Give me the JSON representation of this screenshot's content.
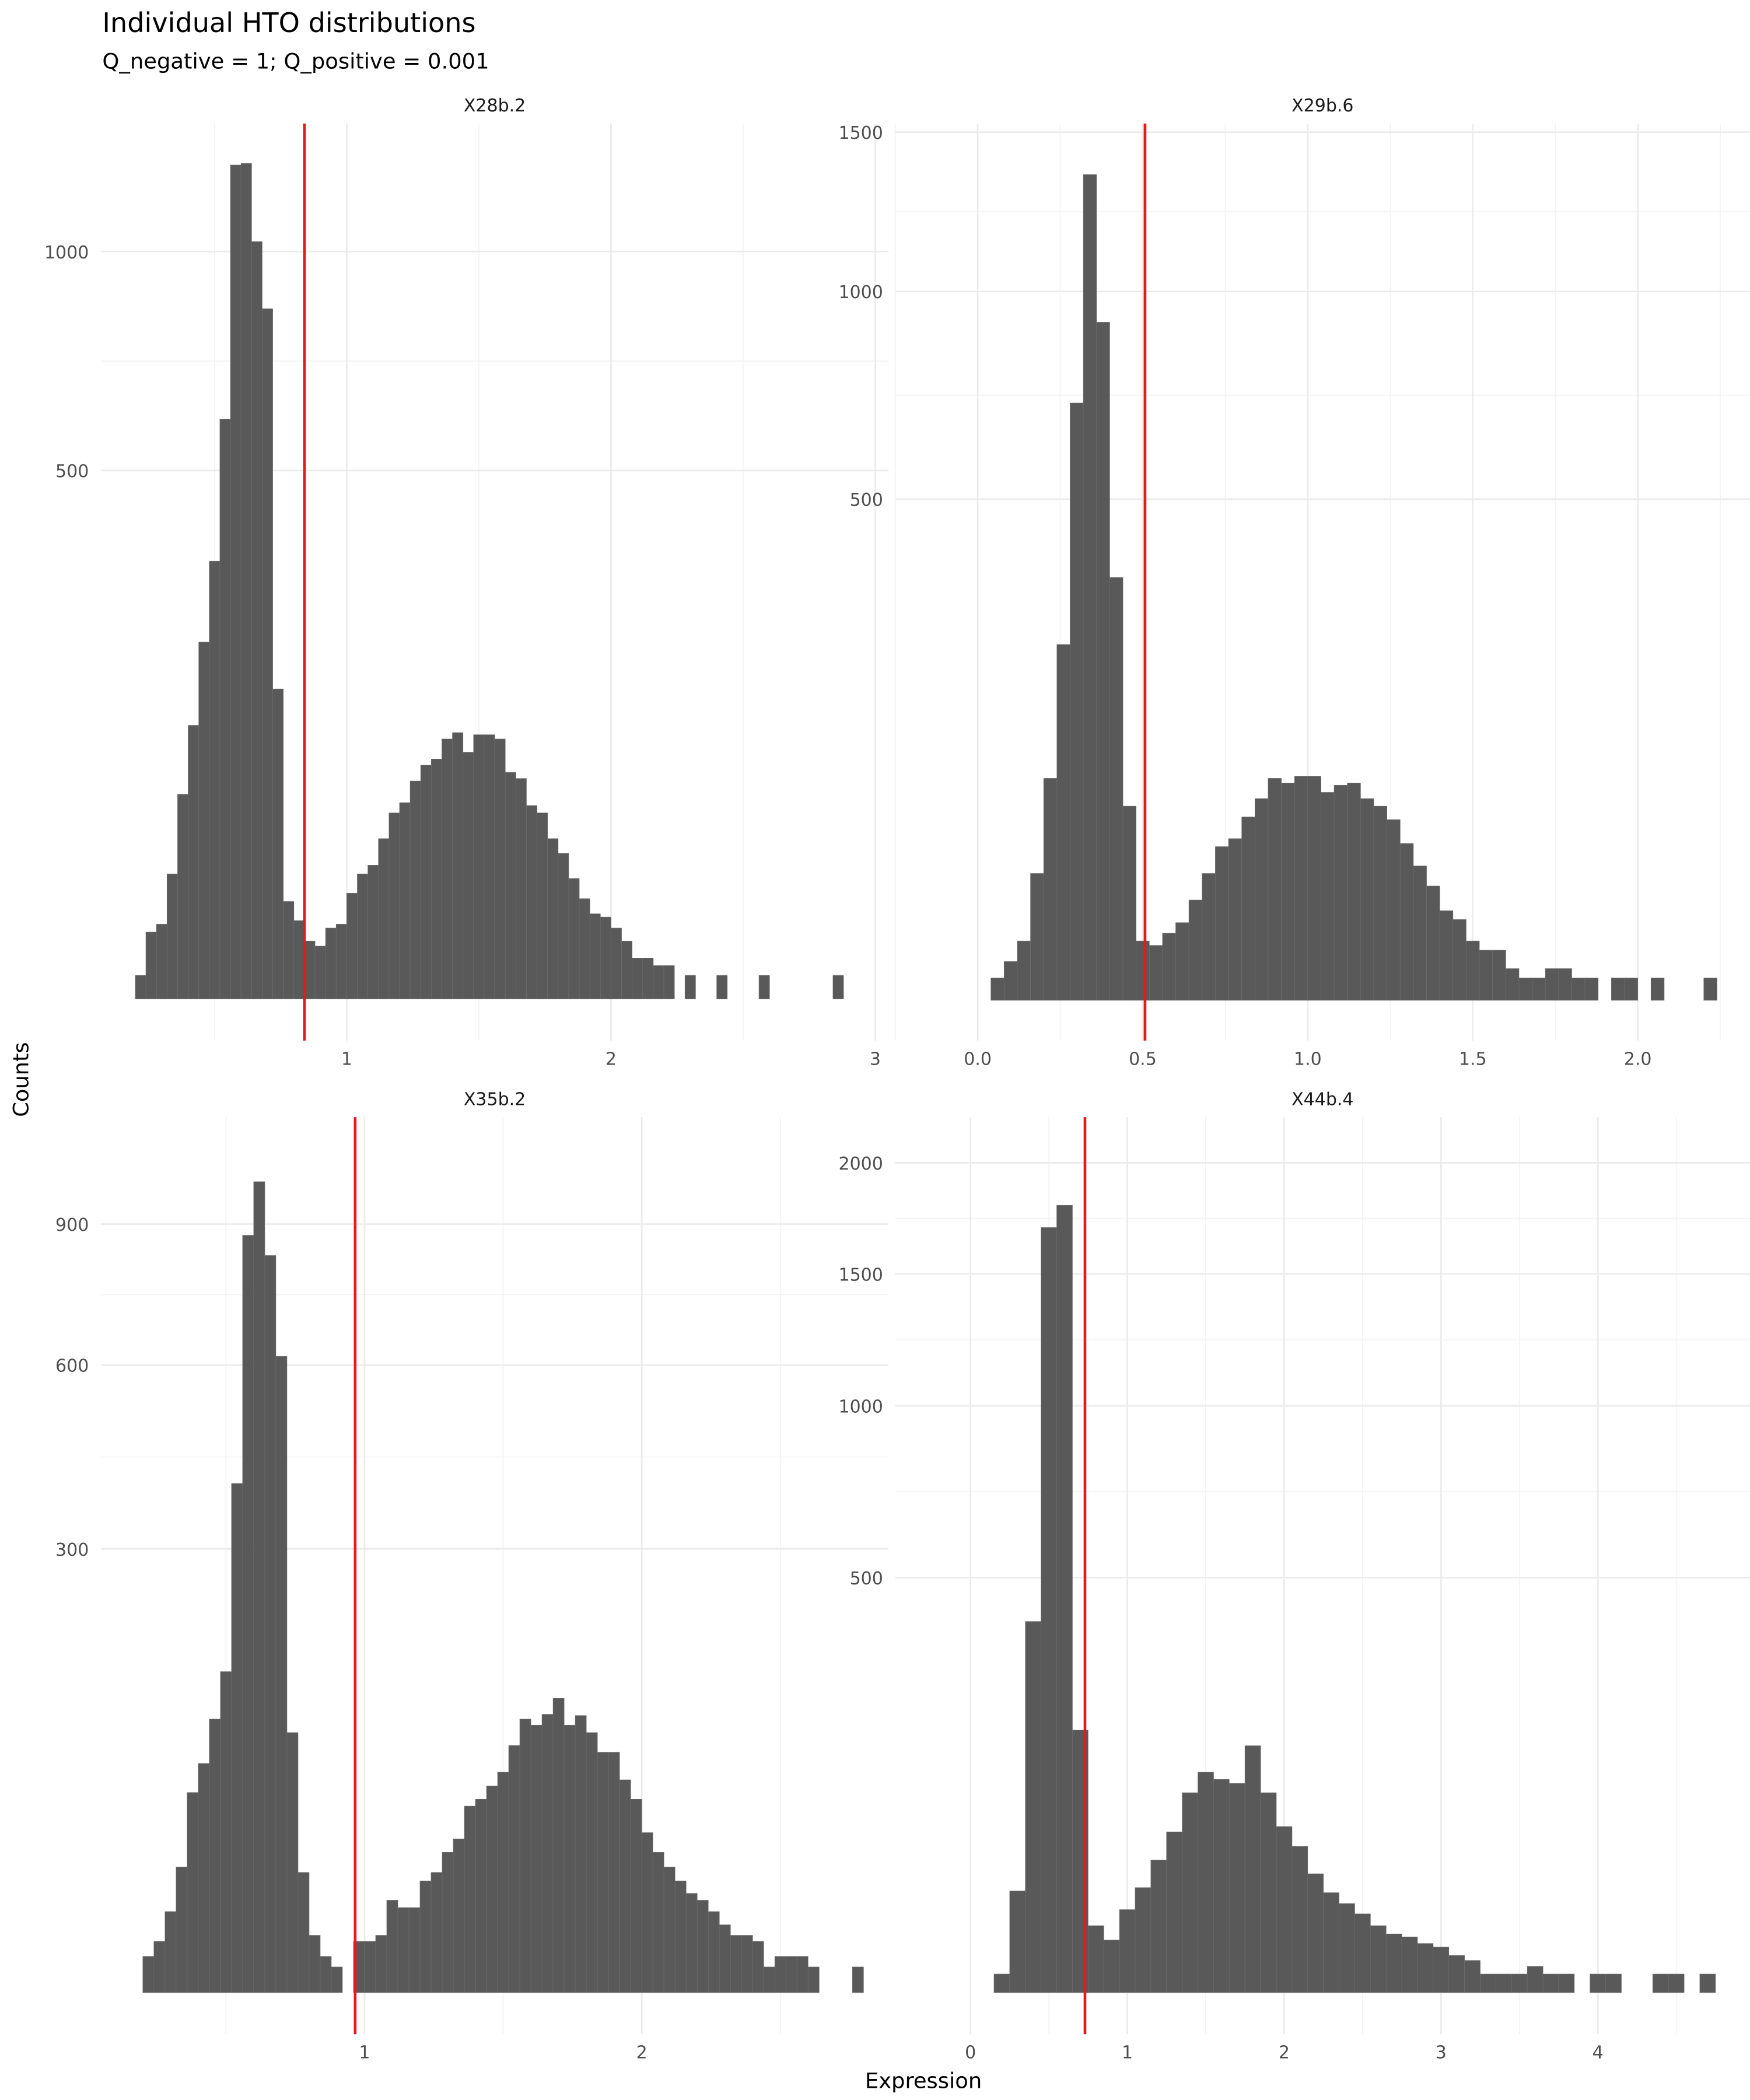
{
  "title": "Individual HTO distributions",
  "subtitle": "Q_negative = 1; Q_positive = 0.001",
  "x_label": "Expression",
  "y_label": "Counts",
  "chart_data": [
    {
      "type": "histogram",
      "title": "X28b.2",
      "color": "#595959",
      "y_scale": "sqrt",
      "grid": true,
      "vline": {
        "value": 0.84,
        "color": "#e41a1c"
      },
      "xlim": [
        0.07,
        3.05
      ],
      "xticks": [
        1,
        2,
        3
      ],
      "ylim": [
        0,
        1372
      ],
      "yticks": [
        500,
        1000
      ],
      "bins": [
        0.2,
        0.24,
        0.28,
        0.32,
        0.36,
        0.4,
        0.44,
        0.48,
        0.52,
        0.56,
        0.6,
        0.64,
        0.68,
        0.72,
        0.76,
        0.8,
        0.84,
        0.88,
        0.92,
        0.96,
        1,
        1.04,
        1.08,
        1.12,
        1.16,
        1.2,
        1.24,
        1.28,
        1.32,
        1.36,
        1.4,
        1.44,
        1.48,
        1.52,
        1.56,
        1.6,
        1.64,
        1.68,
        1.72,
        1.76,
        1.8,
        1.84,
        1.88,
        1.92,
        1.96,
        2,
        2.04,
        2.08,
        2.12,
        2.16,
        2.2,
        2.24,
        2.28,
        2.32,
        2.36,
        2.4,
        2.44,
        2.48,
        2.52,
        2.56,
        2.6,
        2.64,
        2.68,
        2.72,
        2.76,
        2.8,
        2.84,
        2.88,
        2.92
      ],
      "counts": [
        1,
        8,
        10,
        28,
        75,
        134,
        228,
        343,
        602,
        1245,
        1250,
        1027,
        853,
        172,
        17,
        11,
        6,
        5,
        9,
        10,
        20,
        28,
        32,
        46,
        62,
        69,
        85,
        98,
        103,
        121,
        127,
        109,
        125,
        125,
        121,
        92,
        87,
        67,
        62,
        46,
        38,
        26,
        18,
        13,
        12,
        9,
        6,
        3,
        3,
        2,
        2,
        0,
        1,
        0,
        0,
        1,
        0,
        0,
        0,
        1,
        0,
        0,
        0,
        0,
        0,
        0,
        1,
        0
      ]
    },
    {
      "type": "histogram",
      "title": "X29b.6",
      "color": "#595959",
      "y_scale": "sqrt",
      "grid": true,
      "vline": {
        "value": 0.507,
        "color": "#e41a1c"
      },
      "xlim": [
        -0.25,
        2.34
      ],
      "xticks": [
        {
          "value": 0,
          "label": "0.0"
        },
        0.5,
        {
          "value": 1,
          "label": "1.0"
        },
        1.5,
        {
          "value": 2,
          "label": "2.0"
        }
      ],
      "ylim": [
        0,
        1530
      ],
      "yticks": [
        500,
        1000,
        1500
      ],
      "bins": [
        0.04,
        0.08,
        0.12,
        0.16,
        0.2,
        0.24,
        0.28,
        0.32,
        0.36,
        0.4,
        0.44,
        0.48,
        0.52,
        0.56,
        0.6,
        0.64,
        0.68,
        0.72,
        0.76,
        0.8,
        0.84,
        0.88,
        0.92,
        0.96,
        1,
        1.04,
        1.08,
        1.12,
        1.16,
        1.2,
        1.24,
        1.28,
        1.32,
        1.36,
        1.4,
        1.44,
        1.48,
        1.52,
        1.56,
        1.6,
        1.64,
        1.68,
        1.72,
        1.76,
        1.8,
        1.84,
        1.88,
        1.92,
        1.96,
        2,
        2.04,
        2.08,
        2.12,
        2.16,
        2.2,
        2.24
      ],
      "counts": [
        1,
        3,
        7,
        32,
        98,
        252,
        710,
        1357,
        915,
        356,
        75,
        7,
        6,
        9,
        12,
        20,
        32,
        47,
        52,
        67,
        81,
        98,
        94,
        100,
        100,
        86,
        92,
        94,
        81,
        75,
        65,
        49,
        36,
        26,
        16,
        13,
        7,
        5,
        5,
        2,
        1,
        1,
        2,
        2,
        1,
        1,
        0,
        1,
        1,
        0,
        1,
        0,
        0,
        0,
        1
      ]
    },
    {
      "type": "histogram",
      "title": "X35b.2",
      "color": "#595959",
      "y_scale": "sqrt",
      "grid": true,
      "vline": {
        "value": 0.966,
        "color": "#e41a1c"
      },
      "xlim": [
        0.049,
        2.89
      ],
      "xticks": [
        1,
        2
      ],
      "ylim": [
        0,
        1168
      ],
      "yticks": [
        300,
        600,
        900
      ],
      "bins": [
        0.2,
        0.24,
        0.28,
        0.32,
        0.36,
        0.4,
        0.44,
        0.48,
        0.52,
        0.56,
        0.6,
        0.64,
        0.68,
        0.72,
        0.76,
        0.8,
        0.84,
        0.88,
        0.92,
        0.96,
        1,
        1.04,
        1.08,
        1.12,
        1.16,
        1.2,
        1.24,
        1.28,
        1.32,
        1.36,
        1.4,
        1.44,
        1.48,
        1.52,
        1.56,
        1.6,
        1.64,
        1.68,
        1.72,
        1.76,
        1.8,
        1.84,
        1.88,
        1.92,
        1.96,
        2,
        2.04,
        2.08,
        2.12,
        2.16,
        2.2,
        2.24,
        2.28,
        2.32,
        2.36,
        2.4,
        2.44,
        2.48,
        2.52,
        2.56,
        2.6,
        2.64,
        2.68,
        2.72,
        2.76,
        2.8
      ],
      "counts": [
        2,
        4,
        10,
        24,
        61,
        80,
        114,
        157,
        395,
        874,
        1002,
        828,
        617,
        103,
        22,
        5,
        2,
        1,
        0,
        4,
        4,
        5,
        13,
        11,
        11,
        19,
        22,
        30,
        36,
        53,
        57,
        65,
        74,
        93,
        114,
        109,
        118,
        132,
        109,
        117,
        103,
        88,
        88,
        69,
        57,
        39,
        30,
        24,
        19,
        15,
        13,
        10,
        7,
        5,
        5,
        4,
        1,
        2,
        2,
        2,
        1,
        0,
        0,
        0,
        1
      ]
    },
    {
      "type": "histogram",
      "title": "X44b.4",
      "color": "#595959",
      "y_scale": "sqrt",
      "grid": true,
      "vline": {
        "value": 0.73,
        "color": "#e41a1c"
      },
      "xlim": [
        -0.48,
        4.97
      ],
      "xticks": [
        0,
        1,
        2,
        3,
        4
      ],
      "ylim": [
        0,
        2226
      ],
      "yticks": [
        500,
        1000,
        1500,
        2000
      ],
      "bins": [
        0.15,
        0.25,
        0.35,
        0.45,
        0.55,
        0.65,
        0.75,
        0.85,
        0.95,
        1.05,
        1.15,
        1.25,
        1.35,
        1.45,
        1.55,
        1.65,
        1.75,
        1.85,
        1.95,
        2.05,
        2.15,
        2.25,
        2.35,
        2.45,
        2.55,
        2.65,
        2.75,
        2.85,
        2.95,
        3.05,
        3.15,
        3.25,
        3.35,
        3.45,
        3.55,
        3.65,
        3.75,
        3.85,
        3.95,
        4.05,
        4.15,
        4.25,
        4.35,
        4.45,
        4.55,
        4.65,
        4.75
      ],
      "counts": [
        1,
        30,
        400,
        1700,
        1800,
        200,
        13,
        8,
        20,
        32,
        51,
        75,
        116,
        141,
        132,
        127,
        177,
        116,
        80,
        62,
        41,
        29,
        23,
        18,
        13,
        10,
        9,
        7,
        6,
        4,
        3,
        1,
        1,
        1,
        2,
        1,
        1,
        0,
        1,
        1,
        0,
        0,
        1,
        1,
        0,
        1
      ]
    }
  ]
}
